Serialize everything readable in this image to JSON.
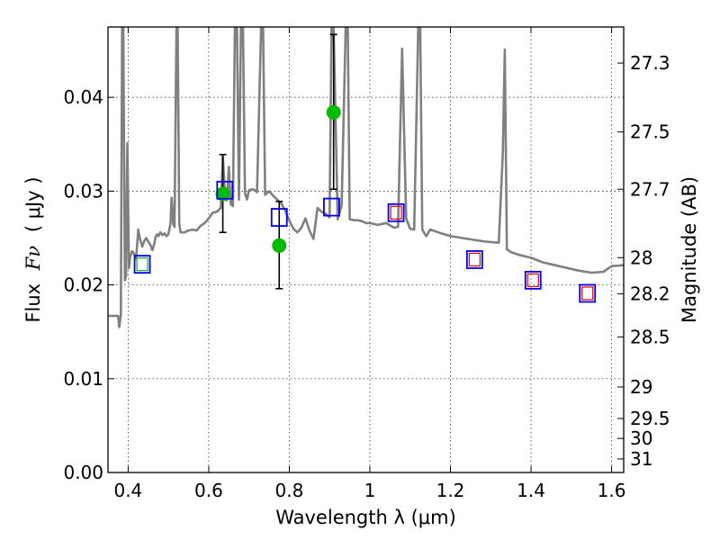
{
  "chart_data": {
    "type": "scatter",
    "xlabel": "Wavelength  λ (μm)",
    "ylabel_prefix": "Flux",
    "ylabel_symbol": "Fν",
    "ylabel_unit": "( μJy )",
    "y2label": "Magnitude (AB)",
    "xlim": [
      0.35,
      1.63
    ],
    "ylim": [
      0.0,
      0.0475
    ],
    "xticks": [
      {
        "value": 0.4,
        "label": "0.4"
      },
      {
        "value": 0.6,
        "label": "0.6"
      },
      {
        "value": 0.8,
        "label": "0.8"
      },
      {
        "value": 1.0,
        "label": "1"
      },
      {
        "value": 1.2,
        "label": "1.2"
      },
      {
        "value": 1.4,
        "label": "1.4"
      },
      {
        "value": 1.6,
        "label": "1.6"
      }
    ],
    "yticks": [
      {
        "value": 0.0,
        "label": "0.00"
      },
      {
        "value": 0.01,
        "label": "0.01"
      },
      {
        "value": 0.02,
        "label": "0.02"
      },
      {
        "value": 0.03,
        "label": "0.03"
      },
      {
        "value": 0.04,
        "label": "0.04"
      }
    ],
    "y2ticks": [
      {
        "label": "27.3",
        "mag": 27.3
      },
      {
        "label": "27.5",
        "mag": 27.5
      },
      {
        "label": "27.7",
        "mag": 27.7
      },
      {
        "label": "28",
        "mag": 28.0
      },
      {
        "label": "28.2",
        "mag": 28.2
      },
      {
        "label": "28.5",
        "mag": 28.5
      },
      {
        "label": "29",
        "mag": 29.0
      },
      {
        "label": "29.5",
        "mag": 29.5
      },
      {
        "label": "30",
        "mag": 30.0
      },
      {
        "label": "31",
        "mag": 31.0
      }
    ],
    "grid": true,
    "colors": {
      "template": "#808080",
      "observed": "#00bb00",
      "model_square": "#0000ee",
      "inner_green": "#22aa22",
      "inner_red": "#dd0000",
      "errorbar": "#000000"
    },
    "template_spectrum": {
      "x": [
        0.35,
        0.375,
        0.378,
        0.382,
        0.385,
        0.388,
        0.392,
        0.395,
        0.398,
        0.402,
        0.405,
        0.41,
        0.415,
        0.42,
        0.425,
        0.43,
        0.435,
        0.44,
        0.445,
        0.45,
        0.455,
        0.46,
        0.465,
        0.468,
        0.472,
        0.475,
        0.48,
        0.485,
        0.49,
        0.495,
        0.5,
        0.505,
        0.508,
        0.512,
        0.515,
        0.52,
        0.523,
        0.527,
        0.53,
        0.54,
        0.55,
        0.56,
        0.57,
        0.58,
        0.59,
        0.6,
        0.61,
        0.62,
        0.63,
        0.635,
        0.64,
        0.645,
        0.65,
        0.655,
        0.66,
        0.665,
        0.67,
        0.675,
        0.68,
        0.685,
        0.69,
        0.695,
        0.7,
        0.71,
        0.72,
        0.73,
        0.735,
        0.74,
        0.75,
        0.76,
        0.77,
        0.78,
        0.79,
        0.8,
        0.81,
        0.82,
        0.83,
        0.84,
        0.85,
        0.86,
        0.87,
        0.88,
        0.89,
        0.9,
        0.905,
        0.91,
        0.92,
        0.93,
        0.94,
        0.945,
        0.95,
        0.96,
        0.97,
        0.98,
        0.99,
        1.0,
        1.02,
        1.04,
        1.06,
        1.07,
        1.08,
        1.09,
        1.1,
        1.11,
        1.12,
        1.125,
        1.13,
        1.14,
        1.15,
        1.17,
        1.2,
        1.23,
        1.26,
        1.29,
        1.32,
        1.33,
        1.335,
        1.34,
        1.35,
        1.37,
        1.4,
        1.43,
        1.46,
        1.49,
        1.52,
        1.55,
        1.58,
        1.6,
        1.63
      ],
      "y": [
        0.0167,
        0.0167,
        0.0155,
        0.0168,
        0.0474,
        0.0474,
        0.0205,
        0.021,
        0.0351,
        0.0218,
        0.023,
        0.0236,
        0.0233,
        0.0228,
        0.0259,
        0.0248,
        0.0241,
        0.0247,
        0.025,
        0.0246,
        0.0243,
        0.0237,
        0.0244,
        0.0251,
        0.0254,
        0.0252,
        0.0256,
        0.0253,
        0.0255,
        0.0252,
        0.0254,
        0.0265,
        0.0293,
        0.0265,
        0.0262,
        0.0474,
        0.0474,
        0.0265,
        0.0256,
        0.0256,
        0.0258,
        0.0259,
        0.0258,
        0.0263,
        0.0266,
        0.0271,
        0.0277,
        0.0278,
        0.0282,
        0.0337,
        0.03,
        0.029,
        0.0326,
        0.0286,
        0.0284,
        0.0474,
        0.0474,
        0.0291,
        0.0474,
        0.0474,
        0.0298,
        0.0291,
        0.0301,
        0.0302,
        0.0299,
        0.0474,
        0.0474,
        0.0296,
        0.03,
        0.0295,
        0.0291,
        0.0287,
        0.0279,
        0.0269,
        0.026,
        0.0256,
        0.0261,
        0.0271,
        0.0258,
        0.0249,
        0.0282,
        0.0278,
        0.0276,
        0.0272,
        0.0474,
        0.0474,
        0.027,
        0.0285,
        0.0474,
        0.0474,
        0.027,
        0.0269,
        0.0269,
        0.0268,
        0.0266,
        0.0266,
        0.0264,
        0.0266,
        0.0261,
        0.0262,
        0.0452,
        0.0271,
        0.026,
        0.0259,
        0.0474,
        0.0474,
        0.0259,
        0.0252,
        0.0259,
        0.0256,
        0.0252,
        0.025,
        0.0248,
        0.0246,
        0.0245,
        0.0341,
        0.0451,
        0.0238,
        0.0235,
        0.0232,
        0.0229,
        0.0224,
        0.0221,
        0.0218,
        0.0215,
        0.0213,
        0.0214,
        0.022,
        0.0221
      ]
    },
    "model_photometry": [
      {
        "x": 0.435,
        "y": 0.0222,
        "inner": "green"
      },
      {
        "x": 0.64,
        "y": 0.0301,
        "inner": "none"
      },
      {
        "x": 0.775,
        "y": 0.0272,
        "inner": "none"
      },
      {
        "x": 0.905,
        "y": 0.0283,
        "inner": "none"
      },
      {
        "x": 1.065,
        "y": 0.0277,
        "inner": "red"
      },
      {
        "x": 1.26,
        "y": 0.0227,
        "inner": "red"
      },
      {
        "x": 1.405,
        "y": 0.0205,
        "inner": "red"
      },
      {
        "x": 1.54,
        "y": 0.0191,
        "inner": "red"
      }
    ],
    "observed_photometry": [
      {
        "x": 0.635,
        "y": 0.0297,
        "yerr_low": 0.0256,
        "yerr_high": 0.0339
      },
      {
        "x": 0.775,
        "y": 0.0242,
        "yerr_low": 0.0196,
        "yerr_high": 0.0289
      },
      {
        "x": 0.91,
        "y": 0.0384,
        "yerr_low": 0.0302,
        "yerr_high": 0.0467
      }
    ]
  }
}
